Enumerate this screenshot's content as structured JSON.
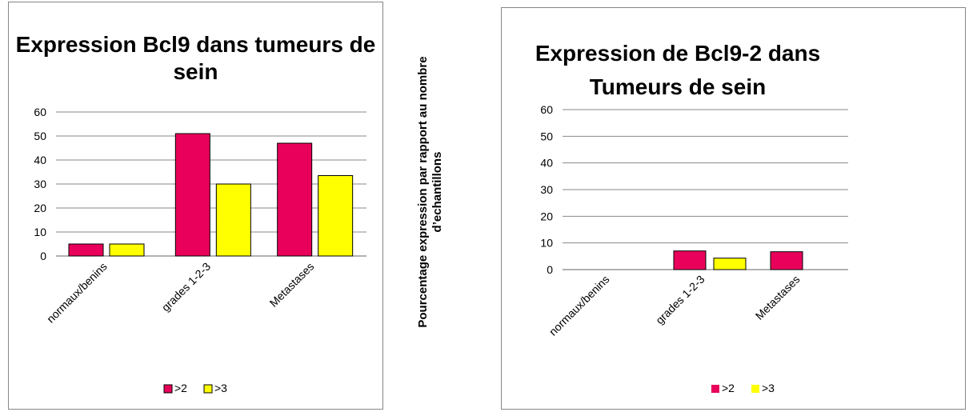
{
  "y_axis_label": "Pourcentage expression par rapport au nombre d’echantillons",
  "chart_data": [
    {
      "type": "bar",
      "title": "Expression Bcl9 dans tumeurs de sein",
      "categories": [
        "normaux/benins",
        "grades 1-2-3",
        "Metastases"
      ],
      "series": [
        {
          "name": ">2",
          "values": [
            5,
            51,
            47
          ],
          "color": "#e8005a"
        },
        {
          "name": ">3",
          "values": [
            5,
            30,
            33.5
          ],
          "color": "#ffff00"
        }
      ],
      "ylim": [
        0,
        60
      ],
      "yticks": [
        0,
        10,
        20,
        30,
        40,
        50,
        60
      ],
      "grid": true,
      "legend": "bottom"
    },
    {
      "type": "bar",
      "title": "Expression de Bcl9-2 dans Tumeurs de sein",
      "categories": [
        "normaux/benins",
        "grades 1-2-3",
        "Metastases"
      ],
      "series": [
        {
          "name": ">2",
          "values": [
            0,
            7,
            6.7
          ],
          "color": "#e8005a"
        },
        {
          "name": ">3",
          "values": [
            0,
            4.3,
            0
          ],
          "color": "#ffff00"
        }
      ],
      "ylim": [
        0,
        60
      ],
      "yticks": [
        0,
        10,
        20,
        30,
        40,
        50,
        60
      ],
      "grid": true,
      "legend": "bottom"
    }
  ]
}
